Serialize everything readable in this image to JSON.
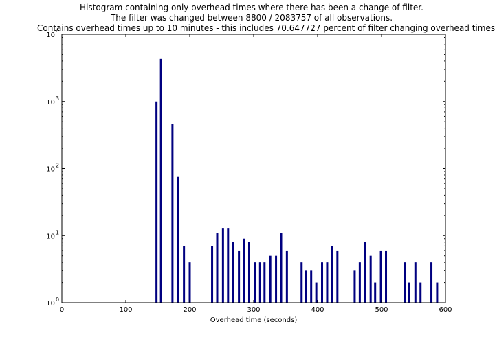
{
  "chart_data": {
    "type": "bar",
    "title_lines": [
      "Histogram containing only overhead times where there has been a change of filter.",
      "The filter was changed between 8800 / 2083757 of all observations.",
      "Contains overhead times up to 10 minutes - this includes 70.647727 percent of filter changing overhead times"
    ],
    "xlabel": "Overhead time (seconds)",
    "ylabel": "",
    "xlim": [
      0,
      600
    ],
    "ylim": [
      1,
      10000
    ],
    "yscale": "log",
    "grid": false,
    "bar_color": "#000080",
    "x_ticks": [
      0,
      100,
      200,
      300,
      400,
      500,
      600
    ],
    "y_ticks": [
      {
        "value": 1,
        "mantissa": "10",
        "exp": "0"
      },
      {
        "value": 10,
        "mantissa": "10",
        "exp": "1"
      },
      {
        "value": 100,
        "mantissa": "10",
        "exp": "2"
      },
      {
        "value": 1000,
        "mantissa": "10",
        "exp": "3"
      },
      {
        "value": 10000,
        "mantissa": "10",
        "exp": "4"
      }
    ],
    "bars": [
      {
        "x": 148,
        "y": 1000
      },
      {
        "x": 155,
        "y": 4300
      },
      {
        "x": 173,
        "y": 460
      },
      {
        "x": 182,
        "y": 75
      },
      {
        "x": 191,
        "y": 7
      },
      {
        "x": 200,
        "y": 4
      },
      {
        "x": 235,
        "y": 7
      },
      {
        "x": 243,
        "y": 11
      },
      {
        "x": 252,
        "y": 13
      },
      {
        "x": 260,
        "y": 13
      },
      {
        "x": 268,
        "y": 8
      },
      {
        "x": 277,
        "y": 6
      },
      {
        "x": 285,
        "y": 9
      },
      {
        "x": 293,
        "y": 8
      },
      {
        "x": 302,
        "y": 4
      },
      {
        "x": 310,
        "y": 4
      },
      {
        "x": 317,
        "y": 4
      },
      {
        "x": 326,
        "y": 5
      },
      {
        "x": 335,
        "y": 5
      },
      {
        "x": 343,
        "y": 11
      },
      {
        "x": 352,
        "y": 6
      },
      {
        "x": 375,
        "y": 4
      },
      {
        "x": 382,
        "y": 3
      },
      {
        "x": 390,
        "y": 3
      },
      {
        "x": 398,
        "y": 2
      },
      {
        "x": 407,
        "y": 4
      },
      {
        "x": 415,
        "y": 4
      },
      {
        "x": 423,
        "y": 7
      },
      {
        "x": 431,
        "y": 6
      },
      {
        "x": 458,
        "y": 3
      },
      {
        "x": 466,
        "y": 4
      },
      {
        "x": 474,
        "y": 8
      },
      {
        "x": 483,
        "y": 5
      },
      {
        "x": 490,
        "y": 2
      },
      {
        "x": 499,
        "y": 6
      },
      {
        "x": 507,
        "y": 6
      },
      {
        "x": 537,
        "y": 4
      },
      {
        "x": 543,
        "y": 2
      },
      {
        "x": 553,
        "y": 4
      },
      {
        "x": 561,
        "y": 2
      },
      {
        "x": 578,
        "y": 4
      },
      {
        "x": 587,
        "y": 2
      }
    ]
  }
}
